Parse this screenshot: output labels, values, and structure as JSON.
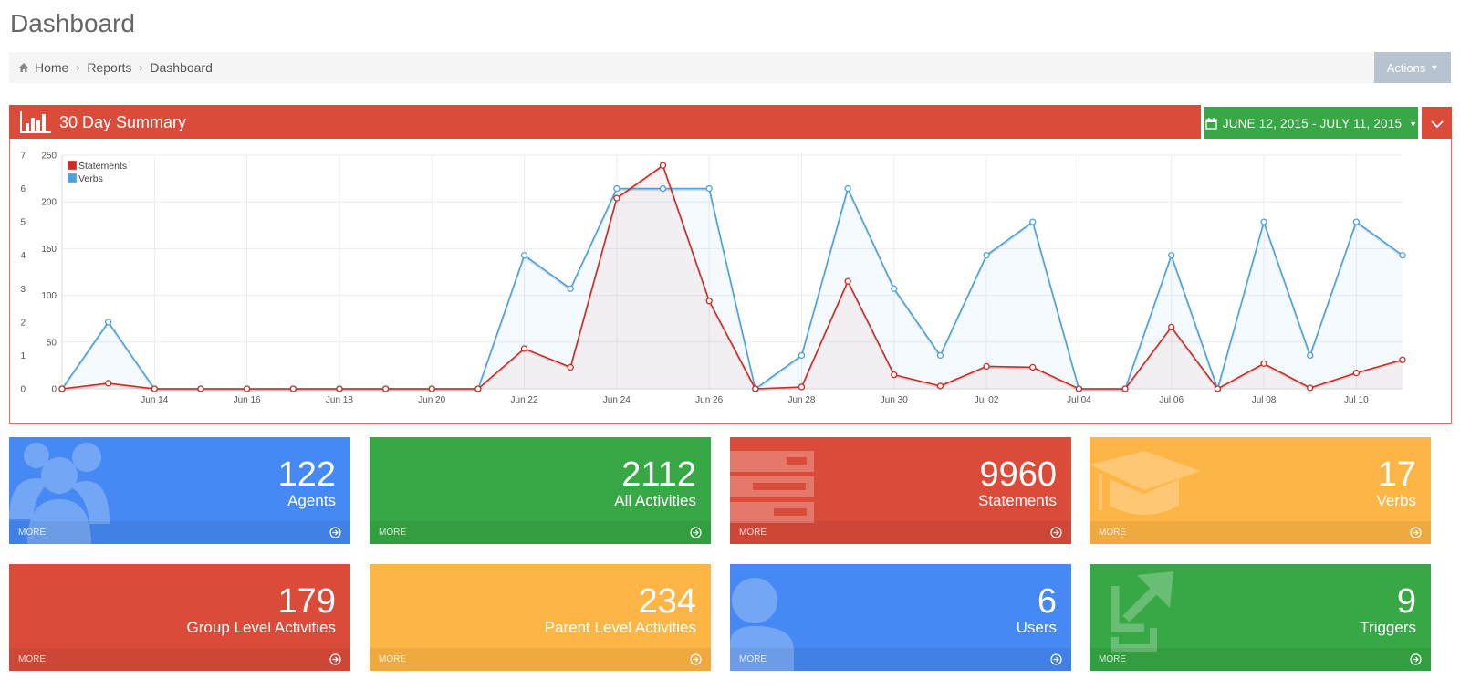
{
  "page": {
    "title": "Dashboard"
  },
  "breadcrumb": {
    "items": [
      "Home",
      "Reports",
      "Dashboard"
    ]
  },
  "header": {
    "actions_label": "Actions"
  },
  "summary": {
    "title": "30 Day Summary",
    "date_range": "JUNE 12, 2015 - JULY 11, 2015"
  },
  "colors": {
    "red": "#db4b39",
    "green": "#37a845",
    "blue": "#4689f4",
    "orange": "#fdb546",
    "statements": "#cc2c24",
    "verbs": "#4aa3df"
  },
  "chart_data": {
    "type": "line",
    "x": [
      "Jun 12",
      "Jun 13",
      "Jun 14",
      "Jun 15",
      "Jun 16",
      "Jun 17",
      "Jun 18",
      "Jun 19",
      "Jun 20",
      "Jun 21",
      "Jun 22",
      "Jun 23",
      "Jun 24",
      "Jun 25",
      "Jun 26",
      "Jun 27",
      "Jun 28",
      "Jun 29",
      "Jun 30",
      "Jul 01",
      "Jul 02",
      "Jul 03",
      "Jul 04",
      "Jul 05",
      "Jul 06",
      "Jul 07",
      "Jul 08",
      "Jul 09",
      "Jul 10",
      "Jul 11"
    ],
    "x_tick_labels": [
      "Jun 14",
      "Jun 16",
      "Jun 18",
      "Jun 20",
      "Jun 22",
      "Jun 24",
      "Jun 26",
      "Jun 28",
      "Jun 30",
      "Jul 02",
      "Jul 04",
      "Jul 06",
      "Jul 08",
      "Jul 10"
    ],
    "series": [
      {
        "name": "Statements",
        "axis": "left",
        "values": [
          0,
          6,
          0,
          0,
          0,
          0,
          0,
          0,
          0,
          0,
          43,
          23,
          204,
          239,
          94,
          0,
          2,
          115,
          15,
          3,
          24,
          23,
          0,
          0,
          66,
          0,
          27,
          1,
          17,
          31
        ]
      },
      {
        "name": "Verbs",
        "axis": "right",
        "values": [
          0,
          2,
          0,
          0,
          0,
          0,
          0,
          0,
          0,
          0,
          4,
          3,
          6,
          6,
          6,
          0,
          1,
          6,
          3,
          1,
          4,
          5,
          0,
          0,
          4,
          0,
          5,
          1,
          5,
          4
        ]
      }
    ],
    "y_left_ticks": [
      "0",
      "50",
      "100",
      "150",
      "200",
      "250"
    ],
    "y_right_ticks": [
      "0",
      "1",
      "2",
      "3",
      "4",
      "5",
      "6",
      "7"
    ],
    "ylim_left": [
      0,
      250
    ],
    "ylim_right": [
      0,
      7
    ],
    "legend": {
      "position": "top-left",
      "items": [
        "Statements",
        "Verbs"
      ]
    },
    "grid": true
  },
  "tiles": [
    {
      "number": "122",
      "label": "Agents",
      "more": "MORE"
    },
    {
      "number": "2112",
      "label": "All Activities",
      "more": "MORE"
    },
    {
      "number": "9960",
      "label": "Statements",
      "more": "MORE"
    },
    {
      "number": "17",
      "label": "Verbs",
      "more": "MORE"
    },
    {
      "number": "179",
      "label": "Group Level Activities",
      "more": "MORE"
    },
    {
      "number": "234",
      "label": "Parent Level Activities",
      "more": "MORE"
    },
    {
      "number": "6",
      "label": "Users",
      "more": "MORE"
    },
    {
      "number": "9",
      "label": "Triggers",
      "more": "MORE"
    }
  ]
}
